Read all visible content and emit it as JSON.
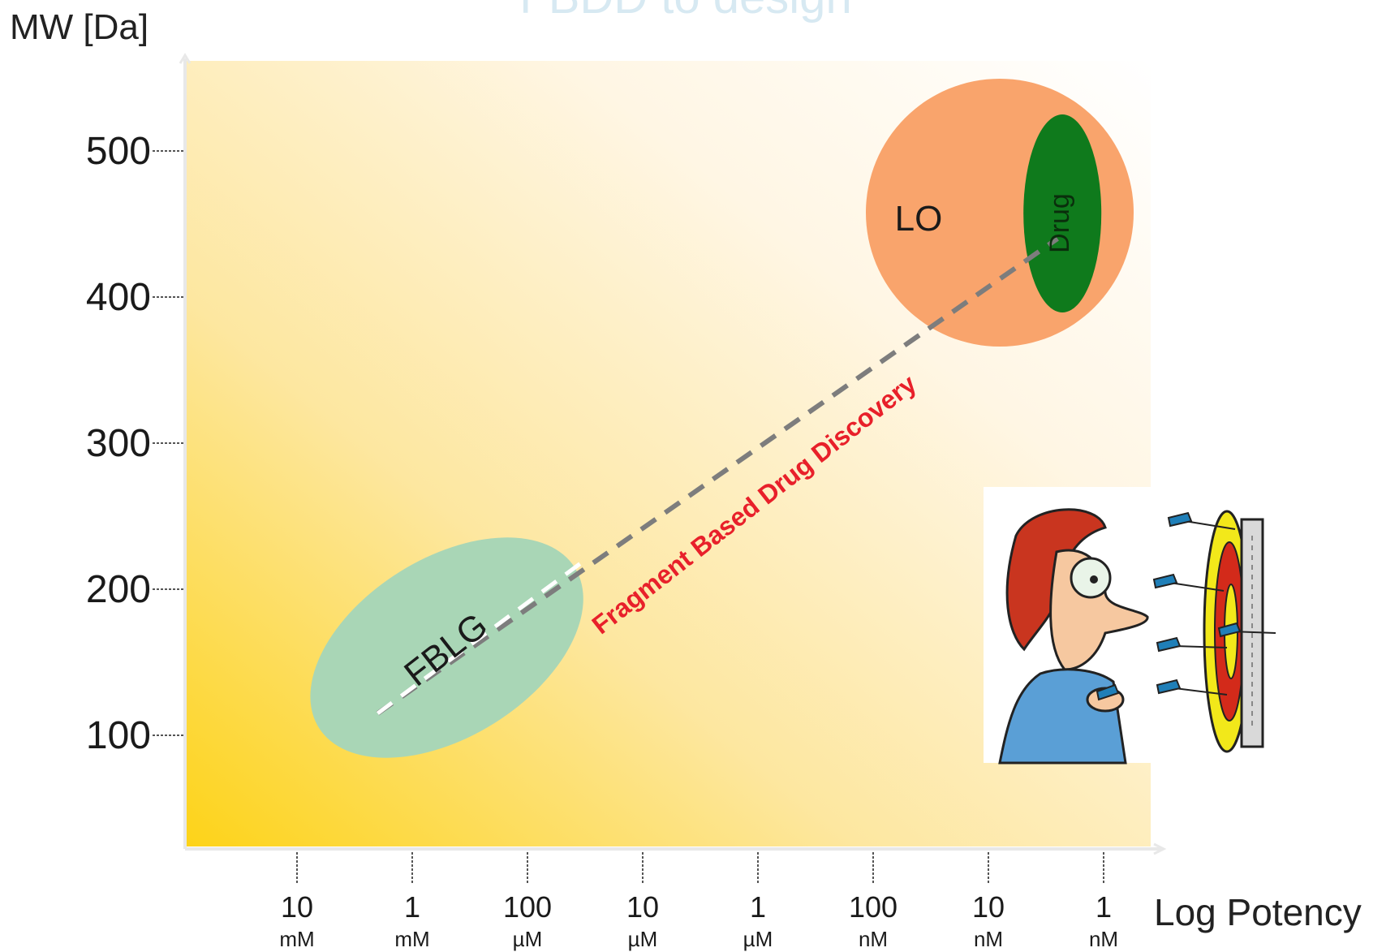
{
  "header_fragment": "FBDD to design",
  "chart_data": {
    "type": "scatter",
    "ylabel": "MW [Da]",
    "xlabel": "Log Potency",
    "y_ticks": [
      {
        "value": 100,
        "label": "100"
      },
      {
        "value": 200,
        "label": "200"
      },
      {
        "value": 300,
        "label": "300"
      },
      {
        "value": 400,
        "label": "400"
      },
      {
        "value": 500,
        "label": "500"
      }
    ],
    "x_ticks": [
      {
        "index": 0,
        "num": "10",
        "unit": "mM"
      },
      {
        "index": 1,
        "num": "1",
        "unit": "mM"
      },
      {
        "index": 2,
        "num": "100",
        "unit": "µM"
      },
      {
        "index": 3,
        "num": "10",
        "unit": "µM"
      },
      {
        "index": 4,
        "num": "1",
        "unit": "µM"
      },
      {
        "index": 5,
        "num": "100",
        "unit": "nM"
      },
      {
        "index": 6,
        "num": "10",
        "unit": "nM"
      },
      {
        "index": 7,
        "num": "1",
        "unit": "nM"
      }
    ],
    "regions": [
      {
        "label": "FBLG",
        "x_center": 1.3,
        "y_center": 160,
        "color": "#a9d6b6"
      },
      {
        "label": "LO",
        "x_center": 6.0,
        "y_center": 460,
        "color": "#f9a46c"
      },
      {
        "label": "Drug",
        "x_center": 6.6,
        "y_center": 455,
        "color": "#0f7a1c"
      }
    ],
    "trend": {
      "label": "Fragment Based Drug Discovery",
      "label_color": "#e8202a",
      "from": {
        "x": 0.7,
        "y": 115
      },
      "to": {
        "x": 6.6,
        "y": 440
      }
    },
    "background_gradient": {
      "start": "#fdd318",
      "end": "#ffffff"
    },
    "grid": false
  }
}
